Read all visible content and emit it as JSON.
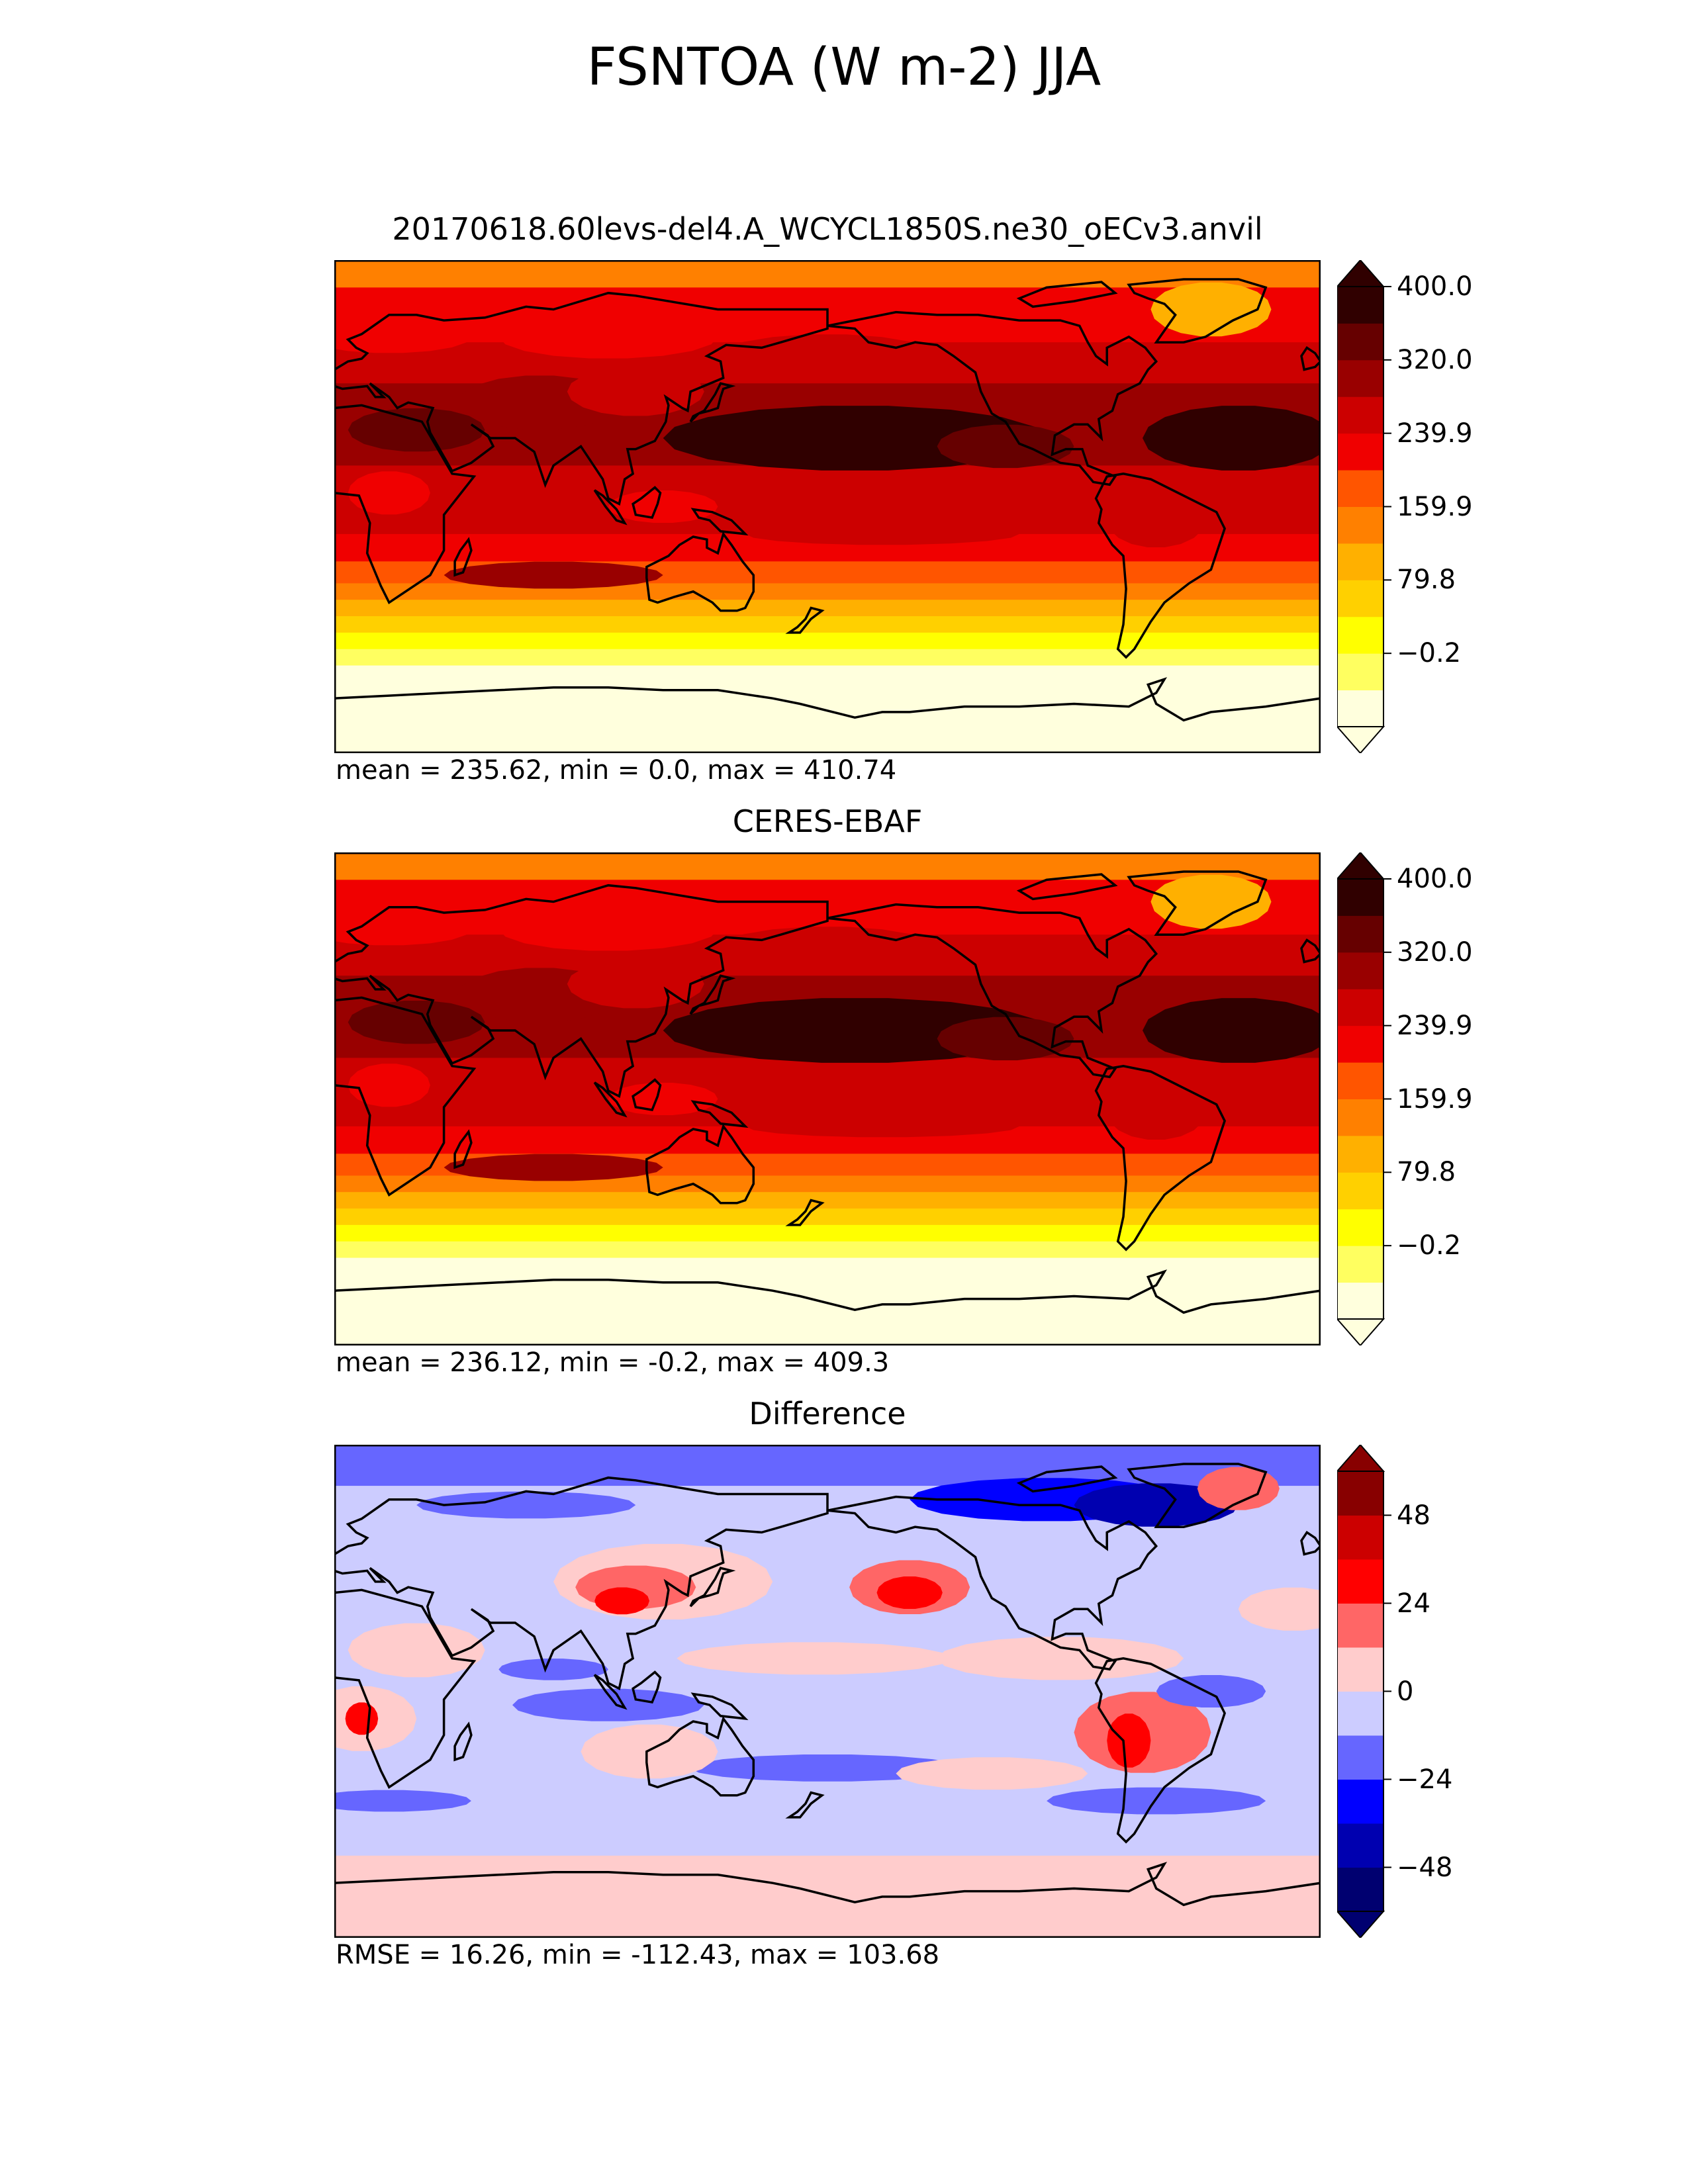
{
  "figure": {
    "title": "FSNTOA (W m-2) JJA"
  },
  "panels": [
    {
      "id": "test",
      "title": "20170618.60levs-del4.A_WCYCL1850S.ne30_oECv3.anvil",
      "stats": "mean = 235.62, min = 0.0, max = 410.74",
      "colormap": [
        "#ffffdd",
        "#ffff60",
        "#ffff00",
        "#ffd000",
        "#ffb000",
        "#ff8000",
        "#ff5500",
        "#f00000",
        "#cc0000",
        "#990000",
        "#660000",
        "#300000"
      ],
      "ticks": [
        "400.0",
        "320.0",
        "239.9",
        "159.9",
        "79.8",
        "−0.2"
      ]
    },
    {
      "id": "reference",
      "title": "CERES-EBAF",
      "stats": "mean = 236.12, min = -0.2, max = 409.3",
      "colormap": [
        "#ffffdd",
        "#ffff60",
        "#ffff00",
        "#ffd000",
        "#ffb000",
        "#ff8000",
        "#ff5500",
        "#f00000",
        "#cc0000",
        "#990000",
        "#660000",
        "#300000"
      ],
      "ticks": [
        "400.0",
        "320.0",
        "239.9",
        "159.9",
        "79.8",
        "−0.2"
      ]
    },
    {
      "id": "difference",
      "title": "Difference",
      "stats": "RMSE = 16.26, min = -112.43, max = 103.68",
      "colormap": [
        "#000070",
        "#0000b0",
        "#0000ff",
        "#6666ff",
        "#ccccff",
        "#ffcccc",
        "#ff6666",
        "#ff0000",
        "#cc0000",
        "#880000"
      ],
      "ticks": [
        "48",
        "24",
        "0",
        "−24",
        "−48"
      ]
    }
  ],
  "chart_data": [
    {
      "type": "heatmap",
      "title": "20170618.60levs-del4.A_WCYCL1850S.ne30_oECv3.anvil",
      "variable": "FSNTOA (W m-2)",
      "season": "JJA",
      "projection": "global lat-lon, 0° to 360° longitude",
      "colorbar_levels": [
        -0.2,
        33.2,
        66.5,
        99.8,
        133.2,
        166.5,
        199.8,
        233.2,
        266.5,
        299.8,
        333.2,
        366.5,
        400.0
      ],
      "colorbar_ticks": [
        400.0,
        320.0,
        239.9,
        159.9,
        79.8,
        -0.2
      ],
      "colorbar_extend": "both",
      "mean": 235.62,
      "min": 0.0,
      "max": 410.74
    },
    {
      "type": "heatmap",
      "title": "CERES-EBAF",
      "variable": "FSNTOA (W m-2)",
      "season": "JJA",
      "projection": "global lat-lon, 0° to 360° longitude",
      "colorbar_levels": [
        -0.2,
        33.2,
        66.5,
        99.8,
        133.2,
        166.5,
        199.8,
        233.2,
        266.5,
        299.8,
        333.2,
        366.5,
        400.0
      ],
      "colorbar_ticks": [
        400.0,
        320.0,
        239.9,
        159.9,
        79.8,
        -0.2
      ],
      "colorbar_extend": "both",
      "mean": 236.12,
      "min": -0.2,
      "max": 409.3
    },
    {
      "type": "heatmap",
      "title": "Difference",
      "variable": "FSNTOA (W m-2)",
      "season": "JJA",
      "projection": "global lat-lon, 0° to 360° longitude",
      "colorbar_levels": [
        -60,
        -48,
        -36,
        -24,
        -12,
        0,
        12,
        24,
        36,
        48,
        60
      ],
      "colorbar_ticks": [
        48,
        24,
        0,
        -24,
        -48
      ],
      "colorbar_extend": "both",
      "rmse": 16.26,
      "min": -112.43,
      "max": 103.68
    }
  ]
}
